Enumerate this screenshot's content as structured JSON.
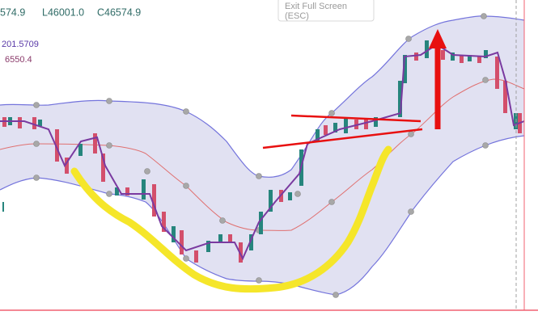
{
  "header": {
    "open_fragment": "574.9",
    "low": "L46001.0",
    "close": "C46574.9"
  },
  "indicators": {
    "first": "201.5709",
    "second": "6550.4"
  },
  "overlay": {
    "title": "Exit Full Screen",
    "shortcut": "(ESC)"
  }
}
